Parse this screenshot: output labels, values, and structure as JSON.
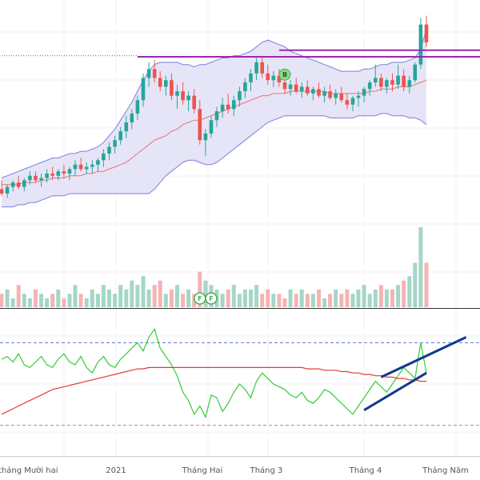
{
  "chart_data": {
    "type": "candlestick",
    "grid": true,
    "x_axis": {
      "tick_labels": [
        "tháng Mười hai",
        "2021",
        "Tháng Hai",
        "Tháng 3",
        "Tháng 4",
        "Tháng Năm"
      ]
    },
    "price_panel": {
      "ylim": [
        0,
        100
      ],
      "candles": [
        {
          "o": 20,
          "h": 24,
          "l": 17,
          "c": 18
        },
        {
          "o": 18,
          "h": 22,
          "l": 16,
          "c": 21
        },
        {
          "o": 21,
          "h": 24,
          "l": 19,
          "c": 23
        },
        {
          "o": 23,
          "h": 26,
          "l": 20,
          "c": 21
        },
        {
          "o": 21,
          "h": 25,
          "l": 19,
          "c": 24
        },
        {
          "o": 24,
          "h": 28,
          "l": 22,
          "c": 26
        },
        {
          "o": 26,
          "h": 28,
          "l": 23,
          "c": 24
        },
        {
          "o": 24,
          "h": 27,
          "l": 21,
          "c": 25
        },
        {
          "o": 25,
          "h": 29,
          "l": 23,
          "c": 27
        },
        {
          "o": 27,
          "h": 30,
          "l": 24,
          "c": 26
        },
        {
          "o": 26,
          "h": 29,
          "l": 24,
          "c": 28
        },
        {
          "o": 28,
          "h": 31,
          "l": 25,
          "c": 27
        },
        {
          "o": 27,
          "h": 30,
          "l": 24,
          "c": 29
        },
        {
          "o": 29,
          "h": 33,
          "l": 26,
          "c": 31
        },
        {
          "o": 31,
          "h": 34,
          "l": 28,
          "c": 29
        },
        {
          "o": 29,
          "h": 32,
          "l": 27,
          "c": 30
        },
        {
          "o": 30,
          "h": 33,
          "l": 27,
          "c": 31
        },
        {
          "o": 31,
          "h": 34,
          "l": 28,
          "c": 33
        },
        {
          "o": 33,
          "h": 38,
          "l": 30,
          "c": 36
        },
        {
          "o": 36,
          "h": 41,
          "l": 33,
          "c": 39
        },
        {
          "o": 39,
          "h": 44,
          "l": 36,
          "c": 42
        },
        {
          "o": 42,
          "h": 48,
          "l": 40,
          "c": 46
        },
        {
          "o": 46,
          "h": 53,
          "l": 43,
          "c": 50
        },
        {
          "o": 50,
          "h": 56,
          "l": 47,
          "c": 54
        },
        {
          "o": 54,
          "h": 62,
          "l": 51,
          "c": 60
        },
        {
          "o": 60,
          "h": 72,
          "l": 57,
          "c": 70
        },
        {
          "o": 70,
          "h": 77,
          "l": 66,
          "c": 74
        },
        {
          "o": 74,
          "h": 78,
          "l": 68,
          "c": 70
        },
        {
          "o": 70,
          "h": 73,
          "l": 64,
          "c": 66
        },
        {
          "o": 66,
          "h": 71,
          "l": 62,
          "c": 69
        },
        {
          "o": 69,
          "h": 72,
          "l": 60,
          "c": 62
        },
        {
          "o": 62,
          "h": 67,
          "l": 56,
          "c": 64
        },
        {
          "o": 64,
          "h": 68,
          "l": 58,
          "c": 60
        },
        {
          "o": 60,
          "h": 64,
          "l": 55,
          "c": 62
        },
        {
          "o": 62,
          "h": 65,
          "l": 54,
          "c": 56
        },
        {
          "o": 56,
          "h": 60,
          "l": 40,
          "c": 42
        },
        {
          "o": 42,
          "h": 47,
          "l": 35,
          "c": 45
        },
        {
          "o": 45,
          "h": 53,
          "l": 43,
          "c": 51
        },
        {
          "o": 51,
          "h": 57,
          "l": 48,
          "c": 55
        },
        {
          "o": 55,
          "h": 61,
          "l": 52,
          "c": 58
        },
        {
          "o": 58,
          "h": 63,
          "l": 54,
          "c": 56
        },
        {
          "o": 56,
          "h": 62,
          "l": 53,
          "c": 60
        },
        {
          "o": 60,
          "h": 66,
          "l": 57,
          "c": 64
        },
        {
          "o": 64,
          "h": 70,
          "l": 61,
          "c": 68
        },
        {
          "o": 68,
          "h": 74,
          "l": 64,
          "c": 72
        },
        {
          "o": 72,
          "h": 79,
          "l": 69,
          "c": 77
        },
        {
          "o": 77,
          "h": 80,
          "l": 70,
          "c": 72
        },
        {
          "o": 72,
          "h": 76,
          "l": 67,
          "c": 69
        },
        {
          "o": 69,
          "h": 73,
          "l": 66,
          "c": 71
        },
        {
          "o": 71,
          "h": 74,
          "l": 66,
          "c": 68
        },
        {
          "o": 68,
          "h": 71,
          "l": 63,
          "c": 65
        },
        {
          "o": 65,
          "h": 69,
          "l": 62,
          "c": 67
        },
        {
          "o": 67,
          "h": 70,
          "l": 63,
          "c": 64
        },
        {
          "o": 64,
          "h": 68,
          "l": 61,
          "c": 66
        },
        {
          "o": 66,
          "h": 69,
          "l": 62,
          "c": 63
        },
        {
          "o": 63,
          "h": 66,
          "l": 60,
          "c": 65
        },
        {
          "o": 65,
          "h": 68,
          "l": 61,
          "c": 62
        },
        {
          "o": 62,
          "h": 66,
          "l": 59,
          "c": 64
        },
        {
          "o": 64,
          "h": 67,
          "l": 60,
          "c": 61
        },
        {
          "o": 61,
          "h": 65,
          "l": 58,
          "c": 63
        },
        {
          "o": 63,
          "h": 66,
          "l": 59,
          "c": 60
        },
        {
          "o": 60,
          "h": 63,
          "l": 56,
          "c": 58
        },
        {
          "o": 58,
          "h": 62,
          "l": 55,
          "c": 61
        },
        {
          "o": 61,
          "h": 64,
          "l": 57,
          "c": 62
        },
        {
          "o": 62,
          "h": 66,
          "l": 59,
          "c": 65
        },
        {
          "o": 65,
          "h": 69,
          "l": 62,
          "c": 68
        },
        {
          "o": 68,
          "h": 76,
          "l": 66,
          "c": 70
        },
        {
          "o": 70,
          "h": 72,
          "l": 64,
          "c": 66
        },
        {
          "o": 66,
          "h": 70,
          "l": 63,
          "c": 69
        },
        {
          "o": 69,
          "h": 72,
          "l": 64,
          "c": 67
        },
        {
          "o": 67,
          "h": 76,
          "l": 65,
          "c": 71
        },
        {
          "o": 71,
          "h": 74,
          "l": 64,
          "c": 66
        },
        {
          "o": 66,
          "h": 71,
          "l": 63,
          "c": 69
        },
        {
          "o": 69,
          "h": 77,
          "l": 68,
          "c": 76
        },
        {
          "o": 76,
          "h": 97,
          "l": 74,
          "c": 94
        },
        {
          "o": 94,
          "h": 98,
          "l": 84,
          "c": 86
        }
      ],
      "sma": [
        22,
        22,
        22,
        22,
        23,
        23,
        23,
        24,
        24,
        25,
        25,
        25,
        26,
        26,
        26,
        27,
        27,
        28,
        28,
        29,
        30,
        31,
        32,
        34,
        36,
        38,
        40,
        42,
        43,
        44,
        46,
        47,
        49,
        50,
        51,
        51,
        52,
        53,
        54,
        55,
        56,
        57,
        58,
        59,
        60,
        61,
        62,
        62,
        63,
        63,
        63,
        64,
        64,
        64,
        64,
        64,
        64,
        64,
        63,
        63,
        63,
        63,
        63,
        63,
        63,
        64,
        64,
        65,
        65,
        65,
        66,
        66,
        66,
        67,
        68,
        69
      ],
      "bb_upper": [
        25,
        26,
        27,
        28,
        29,
        30,
        31,
        32,
        33,
        34,
        34,
        35,
        36,
        36,
        37,
        37,
        38,
        39,
        41,
        44,
        47,
        51,
        55,
        59,
        64,
        69,
        73,
        76,
        77,
        77,
        77,
        77,
        76,
        76,
        75,
        76,
        76,
        77,
        78,
        79,
        79,
        80,
        80,
        81,
        82,
        84,
        86,
        87,
        86,
        85,
        84,
        82,
        81,
        80,
        79,
        78,
        77,
        76,
        75,
        74,
        73,
        73,
        73,
        73,
        74,
        74,
        75,
        76,
        76,
        77,
        77,
        77,
        78,
        79,
        83,
        92
      ],
      "bb_lower": [
        12,
        12,
        12,
        13,
        13,
        14,
        14,
        15,
        16,
        17,
        17,
        17,
        18,
        18,
        18,
        18,
        18,
        18,
        18,
        18,
        18,
        18,
        18,
        18,
        18,
        18,
        18,
        20,
        23,
        26,
        28,
        30,
        32,
        33,
        33,
        32,
        31,
        31,
        32,
        34,
        36,
        38,
        40,
        42,
        44,
        46,
        48,
        50,
        51,
        52,
        53,
        53,
        53,
        53,
        53,
        53,
        53,
        53,
        52,
        52,
        52,
        52,
        52,
        53,
        53,
        53,
        53,
        54,
        54,
        53,
        53,
        53,
        52,
        52,
        51,
        49
      ],
      "markers": [
        {
          "label": "B",
          "candle": 50,
          "value": 71.5,
          "color": "#4caf50"
        },
        {
          "label": "F",
          "candle": 35,
          "value": -1,
          "color": "#4caf50"
        },
        {
          "label": "F",
          "candle": 37,
          "value": -1,
          "color": "#4caf50"
        }
      ],
      "horizontal_lines": [
        {
          "value": 79.5,
          "color": "#9c27b0",
          "x_from_candle": 24,
          "x_to_candle": 75,
          "style": "solid"
        },
        {
          "value": 82.5,
          "color": "#9c27b0",
          "x_from_candle": 49,
          "x_to_candle": 75,
          "style": "solid"
        },
        {
          "value": 80,
          "color": "#e53935",
          "x_from_candle": 0,
          "x_to_candle": 24,
          "style": "dotted"
        }
      ]
    },
    "volume_panel": {
      "values": [
        3,
        4,
        2,
        5,
        3,
        2,
        4,
        3,
        2,
        3,
        4,
        2,
        3,
        5,
        3,
        2,
        4,
        3,
        5,
        4,
        3,
        5,
        4,
        6,
        5,
        7,
        4,
        5,
        6,
        3,
        4,
        5,
        3,
        4,
        3,
        8,
        6,
        5,
        4,
        3,
        4,
        5,
        3,
        4,
        4,
        5,
        3,
        4,
        3,
        3,
        2,
        4,
        3,
        4,
        3,
        3,
        4,
        2,
        3,
        4,
        3,
        4,
        3,
        4,
        5,
        3,
        4,
        5,
        4,
        4,
        5,
        6,
        7,
        10,
        18,
        10
      ]
    },
    "oscillator_panel": {
      "ylim": [
        0,
        100
      ],
      "upper_band": 80,
      "lower_band": 20,
      "series": [
        {
          "name": "",
          "color": "#33cc33",
          "values": [
            68,
            70,
            66,
            72,
            64,
            62,
            66,
            70,
            64,
            62,
            68,
            72,
            66,
            64,
            70,
            62,
            58,
            66,
            70,
            64,
            62,
            68,
            72,
            76,
            80,
            74,
            84,
            90,
            76,
            70,
            64,
            56,
            44,
            38,
            28,
            34,
            26,
            42,
            40,
            30,
            36,
            44,
            50,
            46,
            40,
            52,
            58,
            54,
            50,
            48,
            46,
            42,
            40,
            44,
            38,
            36,
            40,
            46,
            44,
            40,
            36,
            32,
            28,
            34,
            40,
            46,
            52,
            48,
            44,
            50,
            56,
            62,
            58,
            54,
            80,
            58
          ]
        },
        {
          "name": "",
          "color": "#e53935",
          "values": [
            28,
            30,
            32,
            34,
            36,
            38,
            40,
            42,
            44,
            46,
            47,
            48,
            49,
            50,
            51,
            52,
            53,
            54,
            55,
            56,
            57,
            58,
            59,
            60,
            61,
            61,
            62,
            62,
            62,
            62,
            62,
            62,
            62,
            62,
            62,
            62,
            62,
            62,
            62,
            62,
            62,
            62,
            62,
            62,
            62,
            62,
            62,
            62,
            62,
            62,
            62,
            62,
            62,
            62,
            61,
            61,
            61,
            60,
            60,
            60,
            59,
            59,
            58,
            58,
            57,
            57,
            56,
            56,
            55,
            55,
            54,
            54,
            53,
            53,
            52,
            52
          ]
        }
      ],
      "channel_lines": [
        {
          "from": [
            64,
            31
          ],
          "to": [
            75,
            58
          ],
          "color": "#0d3b8c"
        },
        {
          "from": [
            67,
            55
          ],
          "to": [
            82,
            84
          ],
          "color": "#0d3b8c"
        }
      ]
    },
    "colors": {
      "up": "#26a69a",
      "down": "#ef5350",
      "vol_up": "#a5d6c7",
      "vol_down": "#f4b4b4",
      "bb_fill": "#e2e1f6",
      "bb_line": "#7b7fe0",
      "sma": "#ef5350",
      "grid": "#f0f0f0"
    }
  }
}
